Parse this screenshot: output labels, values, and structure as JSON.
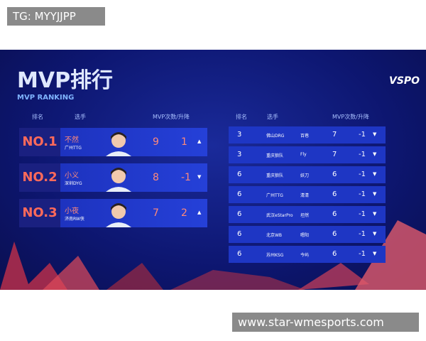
{
  "watermark_top": "TG: MYYJJPP",
  "title": "MVP排行",
  "subtitle": "MVP RANKING",
  "logo": "VSPO",
  "left_table": {
    "headers": [
      "排名",
      "选手",
      "MVP次数/升降"
    ],
    "rows": [
      {
        "rank": "NO.1",
        "player": "不然",
        "team": "广州TTG",
        "mvp": 9,
        "change": 1,
        "trend": "▲"
      },
      {
        "rank": "NO.2",
        "player": "小义",
        "team": "深圳DYG",
        "mvp": 8,
        "change": -1,
        "trend": "▼"
      },
      {
        "rank": "NO.3",
        "player": "小夜",
        "team": "济南RW侠",
        "mvp": 7,
        "change": 2,
        "trend": "▲"
      }
    ]
  },
  "right_table": {
    "headers": [
      "排名",
      "选手",
      "MVP次数/升降"
    ],
    "rows": [
      {
        "rank": 3,
        "team": "佛山DRG",
        "player": "百巷",
        "mvp": 7,
        "change": -1,
        "trend": "▼"
      },
      {
        "rank": 3,
        "team": "重庆狼队",
        "player": "Fly",
        "mvp": 7,
        "change": -1,
        "trend": "▼"
      },
      {
        "rank": 6,
        "team": "重庆狼队",
        "player": "妖刀",
        "mvp": 6,
        "change": -1,
        "trend": "▼"
      },
      {
        "rank": 6,
        "team": "广州TTG",
        "player": "清清",
        "mvp": 6,
        "change": -1,
        "trend": "▼"
      },
      {
        "rank": 6,
        "team": "武汉eStarPro",
        "player": "坦然",
        "mvp": 6,
        "change": -1,
        "trend": "▼"
      },
      {
        "rank": 6,
        "team": "北京WB",
        "player": "嗯阳",
        "mvp": 6,
        "change": -1,
        "trend": "▼"
      },
      {
        "rank": 6,
        "team": "苏州KSG",
        "player": "今屿",
        "mvp": 6,
        "change": -1,
        "trend": "▼"
      }
    ]
  },
  "watermark_bottom": "www.star-wmesports.com"
}
